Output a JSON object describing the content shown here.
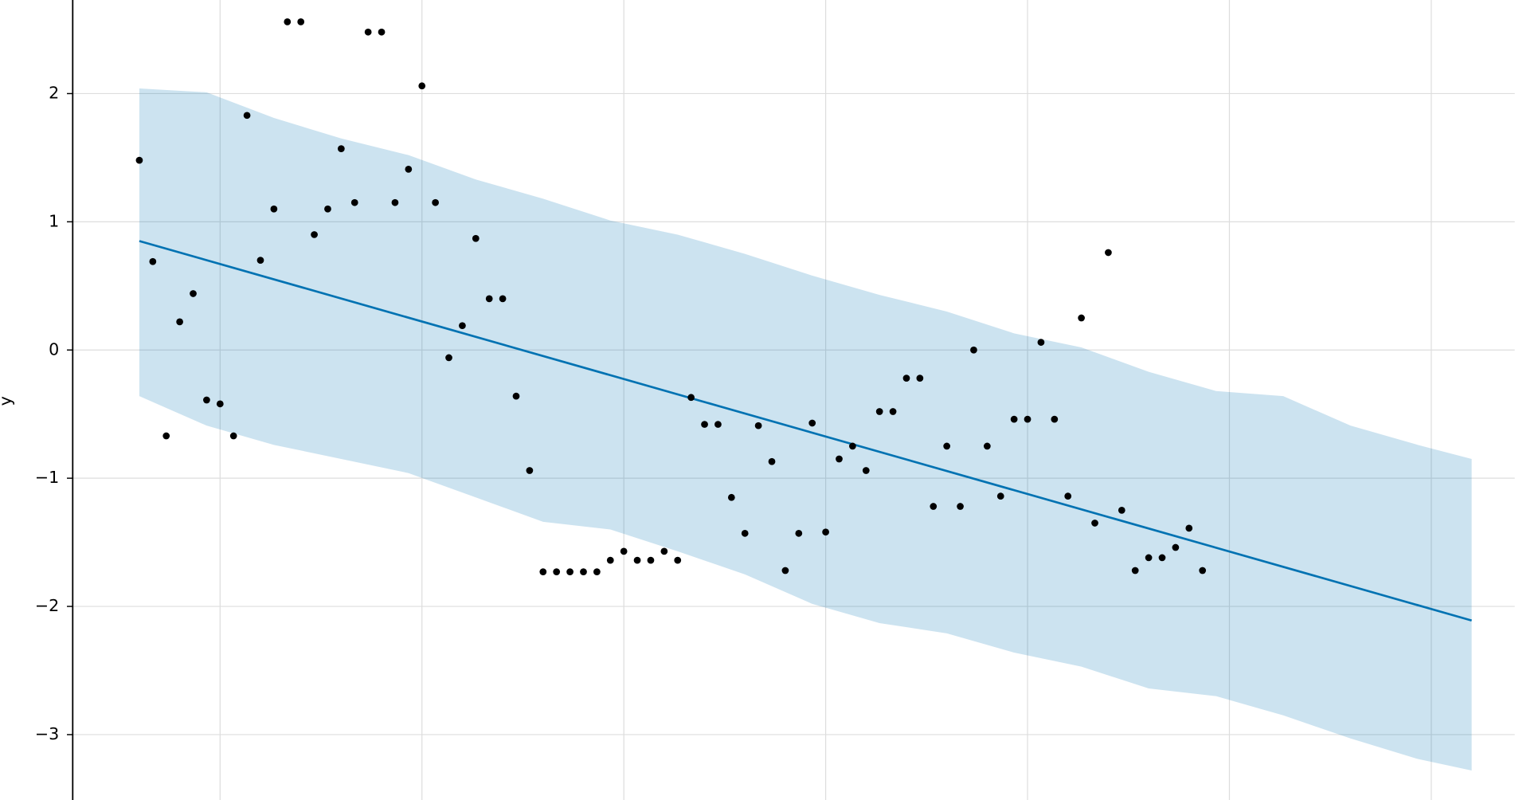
{
  "chart_data": {
    "type": "line",
    "ylabel": "y",
    "grid": true,
    "xlim": [
      -4.95,
      102.2
    ],
    "ylim": [
      -3.51,
      2.73
    ],
    "xticks": [
      6,
      21,
      36,
      51,
      66,
      81,
      96
    ],
    "yticks": [
      {
        "value": -3,
        "label": "−3"
      },
      {
        "value": -2,
        "label": "−2"
      },
      {
        "value": -1,
        "label": "−1"
      },
      0,
      1,
      2
    ],
    "interval": {
      "color": "#0072B2",
      "x": [
        0,
        5,
        10,
        15,
        20,
        25,
        30,
        35,
        40,
        45,
        50,
        55,
        60,
        65,
        70,
        75,
        80,
        85,
        90,
        95,
        99
      ],
      "upper": [
        2.04,
        2.01,
        1.81,
        1.65,
        1.52,
        1.33,
        1.18,
        1.01,
        0.9,
        0.75,
        0.58,
        0.43,
        0.3,
        0.13,
        0.02,
        -0.17,
        -0.32,
        -0.36,
        -0.59,
        -0.74,
        -0.85
      ],
      "lower": [
        -0.36,
        -0.59,
        -0.74,
        -0.85,
        -0.96,
        -1.15,
        -1.34,
        -1.4,
        -1.57,
        -1.75,
        -1.98,
        -2.13,
        -2.21,
        -2.36,
        -2.47,
        -2.64,
        -2.7,
        -2.85,
        -3.03,
        -3.19,
        -3.28
      ]
    },
    "forecast": {
      "color": "#0072B2",
      "x": [
        0,
        99
      ],
      "values": [
        0.85,
        -2.11
      ]
    },
    "observed": {
      "color": "#000000",
      "x": [
        0,
        1,
        2,
        3,
        4,
        5,
        6,
        7,
        8,
        9,
        10,
        11,
        12,
        13,
        14,
        15,
        16,
        17,
        18,
        19,
        20,
        21,
        22,
        23,
        24,
        25,
        26,
        27,
        28,
        29,
        30,
        31,
        32,
        33,
        34,
        35,
        36,
        37,
        38,
        39,
        40,
        41,
        42,
        43,
        44,
        45,
        46,
        47,
        48,
        49,
        50,
        51,
        52,
        53,
        54,
        55,
        56,
        57,
        58,
        59,
        60,
        61,
        62,
        63,
        64,
        65,
        66,
        67,
        68,
        69,
        70,
        71,
        72,
        73,
        74,
        75,
        76,
        77,
        78,
        79
      ],
      "values": [
        1.48,
        0.69,
        -0.67,
        0.22,
        0.44,
        -0.39,
        -0.42,
        -0.67,
        1.83,
        0.7,
        1.1,
        2.56,
        2.56,
        0.9,
        1.1,
        1.57,
        1.15,
        2.48,
        2.48,
        1.15,
        1.41,
        2.06,
        1.15,
        -0.06,
        0.19,
        0.87,
        0.4,
        0.4,
        -0.36,
        -0.94,
        -1.73,
        -1.73,
        -1.73,
        -1.73,
        -1.73,
        -1.64,
        -1.57,
        -1.64,
        -1.64,
        -1.57,
        -1.64,
        -0.37,
        -0.58,
        -0.58,
        -1.15,
        -1.43,
        -0.59,
        -0.87,
        -1.72,
        -1.43,
        -0.57,
        -1.42,
        -0.85,
        -0.75,
        -0.94,
        -0.48,
        -0.48,
        -0.22,
        -0.22,
        -1.22,
        -0.75,
        -1.22,
        0.0,
        -0.75,
        -1.14,
        -0.54,
        -0.54,
        0.06,
        -0.54,
        -1.14,
        0.25,
        -1.35,
        0.76,
        -1.25,
        -1.72,
        -1.62,
        -1.62,
        -1.54,
        -1.39,
        -1.72
      ]
    }
  }
}
